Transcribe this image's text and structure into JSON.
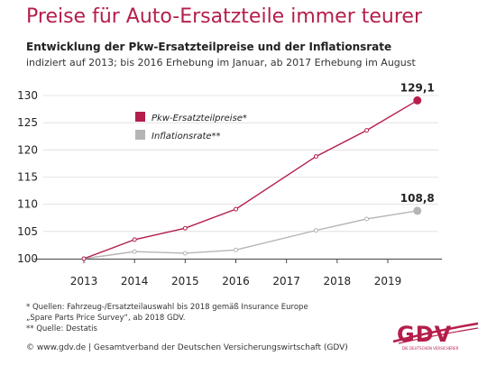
{
  "title": "Preise für Auto-Ersatzteile immer teurer",
  "subtitle": "Entwicklung der Pkw-Ersatzteilpreise und der Inflationsrate",
  "note": "indiziert auf 2013; bis 2016 Erhebung im Januar, ab 2017 Erhebung im August",
  "footnotes": [
    "* Quellen: Fahrzeug-/Ersatzteilauswahl bis 2018 gemäß Insurance Europe",
    "„Spare Parts Price Survey“, ab 2018 GDV.",
    "** Quelle: Destatis"
  ],
  "copyright": "© www.gdv.de | Gesamtverband der Deutschen Versicherungswirtschaft (GDV)",
  "logo": {
    "text": "GDV",
    "sub": "DIE DEUTSCHEN VERSICHERER"
  },
  "colors": {
    "accent": "#b51e4a",
    "parts": "#b51e4a",
    "inflation": "#b5b5b5",
    "grid": "#dcdcdc"
  },
  "chart_data": {
    "type": "line",
    "title": "Preise für Auto-Ersatzteile immer teurer",
    "ylim": [
      100,
      130
    ],
    "yticks": [
      100,
      105,
      110,
      115,
      120,
      125,
      130
    ],
    "xticks": [
      "2013",
      "2014",
      "2015",
      "2016",
      "2017",
      "2018",
      "2019"
    ],
    "grid": true,
    "legend_position": "top-left",
    "series": [
      {
        "name": "Pkw-Ersatzteilpreise*",
        "color": "#b51e4a",
        "x": [
          "2013-01",
          "2014-01",
          "2015-01",
          "2016-01",
          "2017-08",
          "2018-08",
          "2019-08"
        ],
        "values": [
          100,
          103.5,
          105.6,
          109.1,
          118.8,
          123.6,
          129.1
        ],
        "end_label": "129,1"
      },
      {
        "name": "Inflationsrate**",
        "color": "#b5b5b5",
        "x": [
          "2013-01",
          "2014-01",
          "2015-01",
          "2016-01",
          "2017-08",
          "2018-08",
          "2019-08"
        ],
        "values": [
          100,
          101.3,
          101.0,
          101.6,
          105.2,
          107.3,
          108.8
        ],
        "end_label": "108,8"
      }
    ]
  }
}
